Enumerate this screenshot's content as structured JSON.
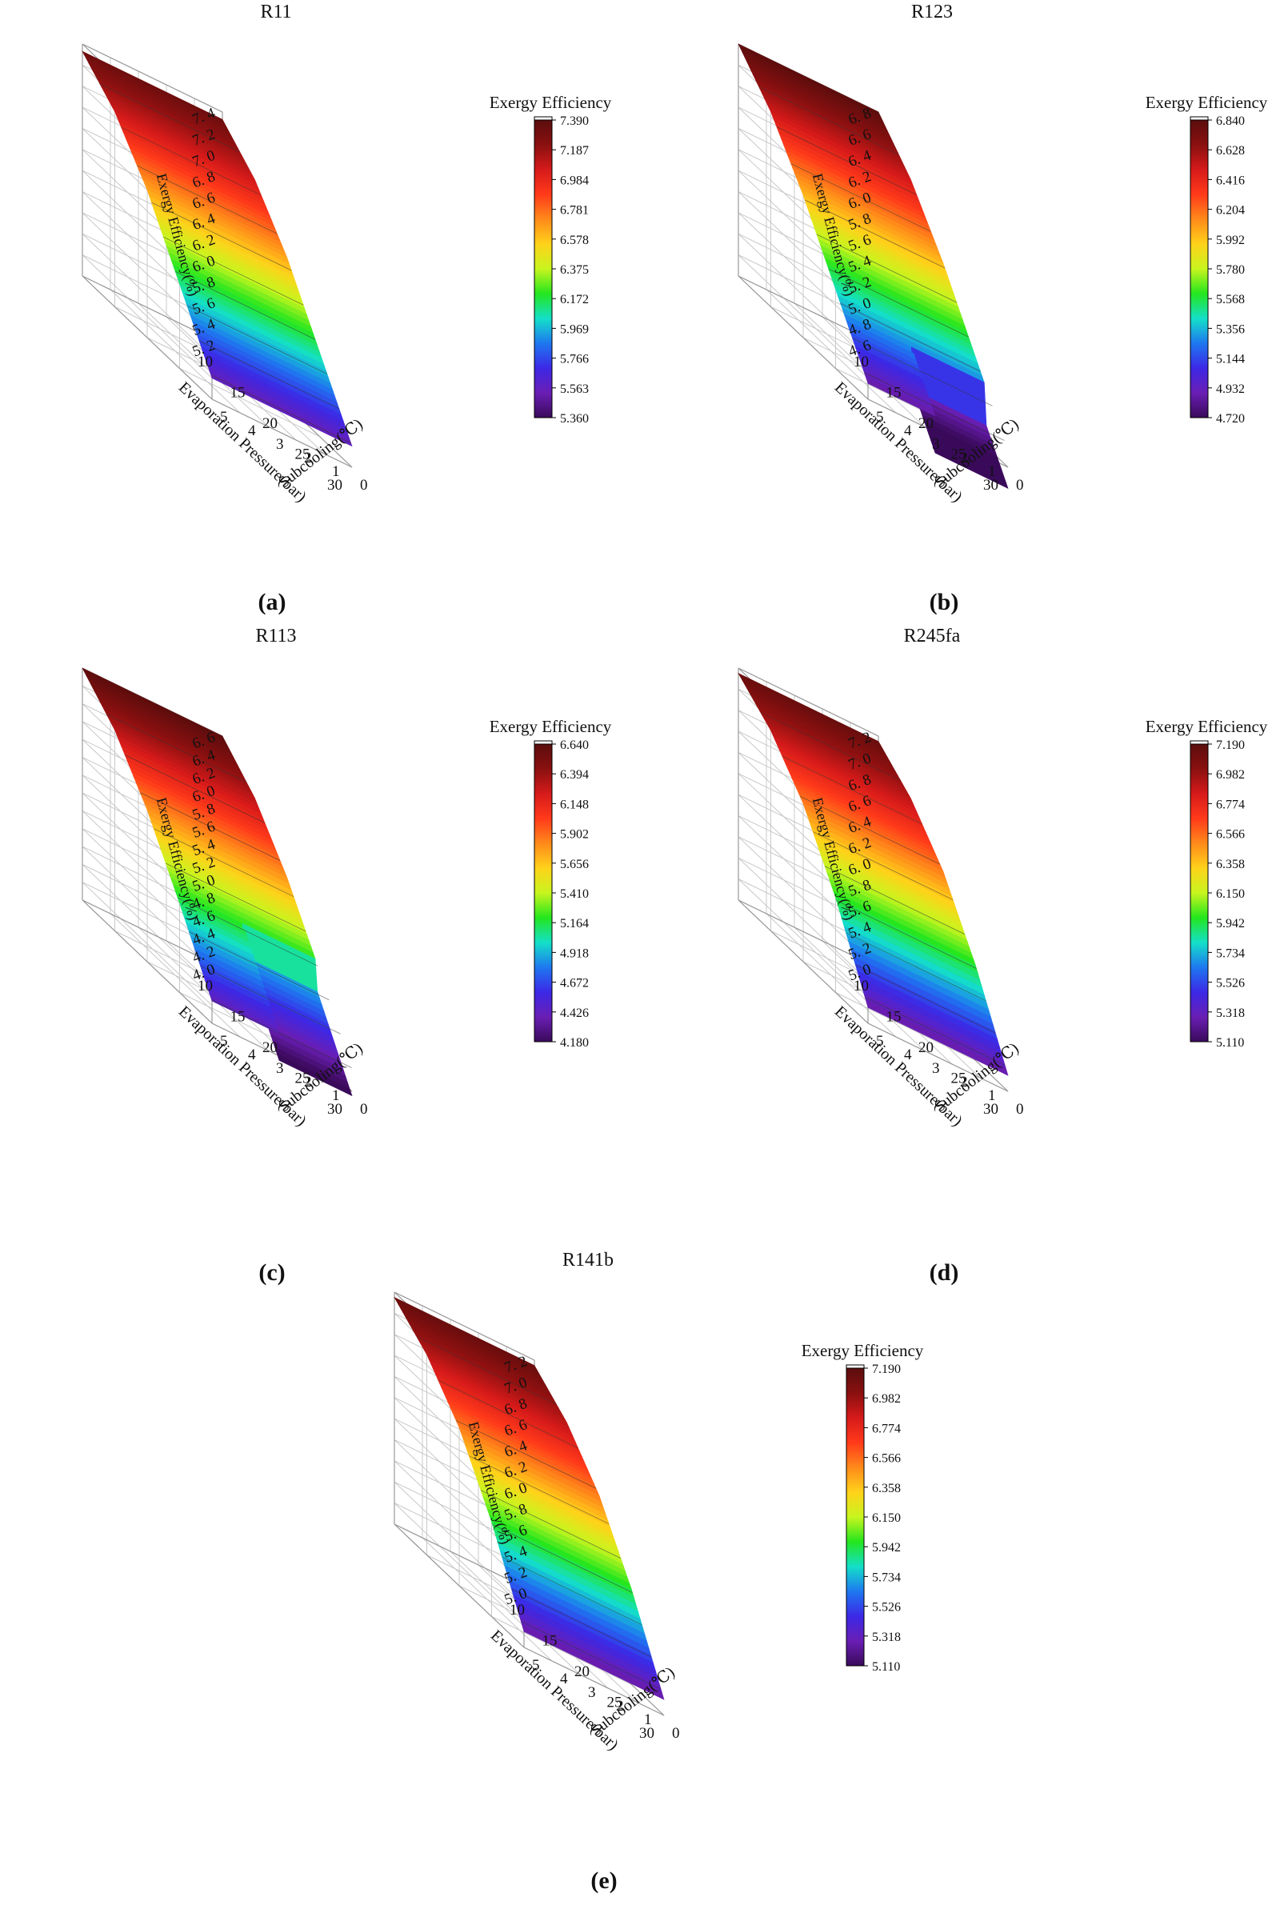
{
  "figure": {
    "panels": [
      {
        "id": "a",
        "caption": "(a)"
      },
      {
        "id": "b",
        "caption": "(b)"
      },
      {
        "id": "c",
        "caption": "(c)"
      },
      {
        "id": "d",
        "caption": "(d)"
      },
      {
        "id": "e",
        "caption": "(e)"
      }
    ]
  },
  "chart_data": [
    {
      "type": "surface",
      "title": "R11",
      "xlabel": "Evaporation Pressure(bar)",
      "ylabel": "Subcooling(℃)",
      "zlabel": "Exergy Efficiency(%)",
      "colorbar_title": "Exergy Efficiency",
      "x_ticks": [
        10,
        15,
        20,
        25,
        30
      ],
      "y_ticks": [
        0,
        1,
        2,
        3,
        4,
        5
      ],
      "z_ticks": [
        "5. 2",
        "5. 4",
        "5. 6",
        "5. 8",
        "6. 0",
        "6. 2",
        "6. 4",
        "6. 6",
        "6. 8",
        "7. 0",
        "7. 2",
        "7. 4"
      ],
      "colorbar_ticks": [
        "7.390",
        "7.187",
        "6.984",
        "6.781",
        "6.578",
        "6.375",
        "6.172",
        "5.969",
        "5.766",
        "5.563",
        "5.360"
      ],
      "xlim": [
        10,
        30
      ],
      "ylim": [
        0,
        5
      ],
      "zlim": [
        5.2,
        7.4
      ],
      "x": [
        10,
        15,
        20,
        25,
        30
      ],
      "z_profile": [
        7.33,
        7.05,
        6.6,
        6.0,
        5.4
      ],
      "step": null
    },
    {
      "type": "surface",
      "title": "R123",
      "xlabel": "Evaporation Pressure(bar)",
      "ylabel": "Subcooling(℃)",
      "zlabel": "Exergy Efficiency(%)",
      "colorbar_title": "Exergy Efficiency",
      "x_ticks": [
        10,
        15,
        20,
        25,
        30
      ],
      "y_ticks": [
        0,
        1,
        2,
        3,
        4,
        5
      ],
      "z_ticks": [
        "4. 6",
        "4. 8",
        "5. 0",
        "5. 2",
        "5. 4",
        "5. 6",
        "5. 8",
        "6. 0",
        "6. 2",
        "6. 4",
        "6. 6",
        "6. 8"
      ],
      "colorbar_ticks": [
        "6.840",
        "6.628",
        "6.416",
        "6.204",
        "5.992",
        "5.780",
        "5.568",
        "5.356",
        "5.144",
        "4.932",
        "4.720"
      ],
      "xlim": [
        10,
        30
      ],
      "ylim": [
        0,
        5
      ],
      "zlim": [
        4.6,
        6.8
      ],
      "x": [
        10,
        15,
        20,
        25,
        30
      ],
      "z_profile": [
        6.8,
        6.45,
        5.95,
        5.35,
        4.75
      ],
      "step": {
        "x": 26.5,
        "drop": 0.35
      }
    },
    {
      "type": "surface",
      "title": "R113",
      "xlabel": "Evaporation Pressure(bar)",
      "ylabel": "Subcooling(℃)",
      "zlabel": "Exergy Efficiency(%)",
      "colorbar_title": "Exergy Efficiency",
      "x_ticks": [
        10,
        15,
        20,
        25,
        30
      ],
      "y_ticks": [
        0,
        1,
        2,
        3,
        4,
        5
      ],
      "z_ticks": [
        "4. 0",
        "4. 2",
        "4. 4",
        "4. 6",
        "4. 8",
        "5. 0",
        "5. 2",
        "5. 4",
        "5. 6",
        "5. 8",
        "6. 0",
        "6. 2",
        "6. 4",
        "6. 6"
      ],
      "colorbar_ticks": [
        "6.640",
        "6.394",
        "6.148",
        "5.902",
        "5.656",
        "5.410",
        "5.164",
        "4.918",
        "4.672",
        "4.426",
        "4.180"
      ],
      "xlim": [
        10,
        30
      ],
      "ylim": [
        0,
        5
      ],
      "zlim": [
        4.0,
        6.6
      ],
      "x": [
        10,
        15,
        20,
        25,
        30
      ],
      "z_profile": [
        6.6,
        6.25,
        5.7,
        5.0,
        4.25
      ],
      "step": {
        "x": 24.5,
        "drop": 0.3
      }
    },
    {
      "type": "surface",
      "title": "R245fa",
      "xlabel": "Evaporation Pressure(bar)",
      "ylabel": "Subcooling(℃)",
      "zlabel": "Exergy Efficiency(%)",
      "colorbar_title": "Exergy Efficiency",
      "x_ticks": [
        10,
        15,
        20,
        25,
        30
      ],
      "y_ticks": [
        0,
        1,
        2,
        3,
        4,
        5
      ],
      "z_ticks": [
        "5. 0",
        "5. 2",
        "5. 4",
        "5. 6",
        "5. 8",
        "6. 0",
        "6. 2",
        "6. 4",
        "6. 6",
        "6. 8",
        "7. 0",
        "7. 2"
      ],
      "colorbar_ticks": [
        "7.190",
        "6.982",
        "6.774",
        "6.566",
        "6.358",
        "6.150",
        "5.942",
        "5.734",
        "5.526",
        "5.318",
        "5.110"
      ],
      "xlim": [
        10,
        30
      ],
      "ylim": [
        0,
        5
      ],
      "zlim": [
        5.0,
        7.2
      ],
      "x": [
        10,
        15,
        20,
        25,
        30
      ],
      "z_profile": [
        7.15,
        6.9,
        6.5,
        5.9,
        5.15
      ],
      "step": null
    },
    {
      "type": "surface",
      "title": "R141b",
      "xlabel": "Evaporation Pressure(bar)",
      "ylabel": "Subcooling(℃)",
      "zlabel": "Exergy Efficiency(%)",
      "colorbar_title": "Exergy Efficiency",
      "x_ticks": [
        10,
        15,
        20,
        25,
        30
      ],
      "y_ticks": [
        0,
        1,
        2,
        3,
        4,
        5
      ],
      "z_ticks": [
        "5. 0",
        "5. 2",
        "5. 4",
        "5. 6",
        "5. 8",
        "6. 0",
        "6. 2",
        "6. 4",
        "6. 6",
        "6. 8",
        "7. 0",
        "7. 2"
      ],
      "colorbar_ticks": [
        "7.190",
        "6.982",
        "6.774",
        "6.566",
        "6.358",
        "6.150",
        "5.942",
        "5.734",
        "5.526",
        "5.318",
        "5.110"
      ],
      "xlim": [
        10,
        30
      ],
      "ylim": [
        0,
        5
      ],
      "zlim": [
        5.0,
        7.2
      ],
      "x": [
        10,
        15,
        20,
        25,
        30
      ],
      "z_profile": [
        7.15,
        6.9,
        6.5,
        5.9,
        5.15
      ],
      "step": null
    }
  ],
  "colormap": [
    "#5b0d0d",
    "#8a1010",
    "#d61a1a",
    "#ff3a1a",
    "#ff8a1a",
    "#ffd21a",
    "#c8f51e",
    "#24e61e",
    "#14e0c8",
    "#1e78f0",
    "#3c28e6",
    "#6a1eb4",
    "#3a0a5a"
  ]
}
